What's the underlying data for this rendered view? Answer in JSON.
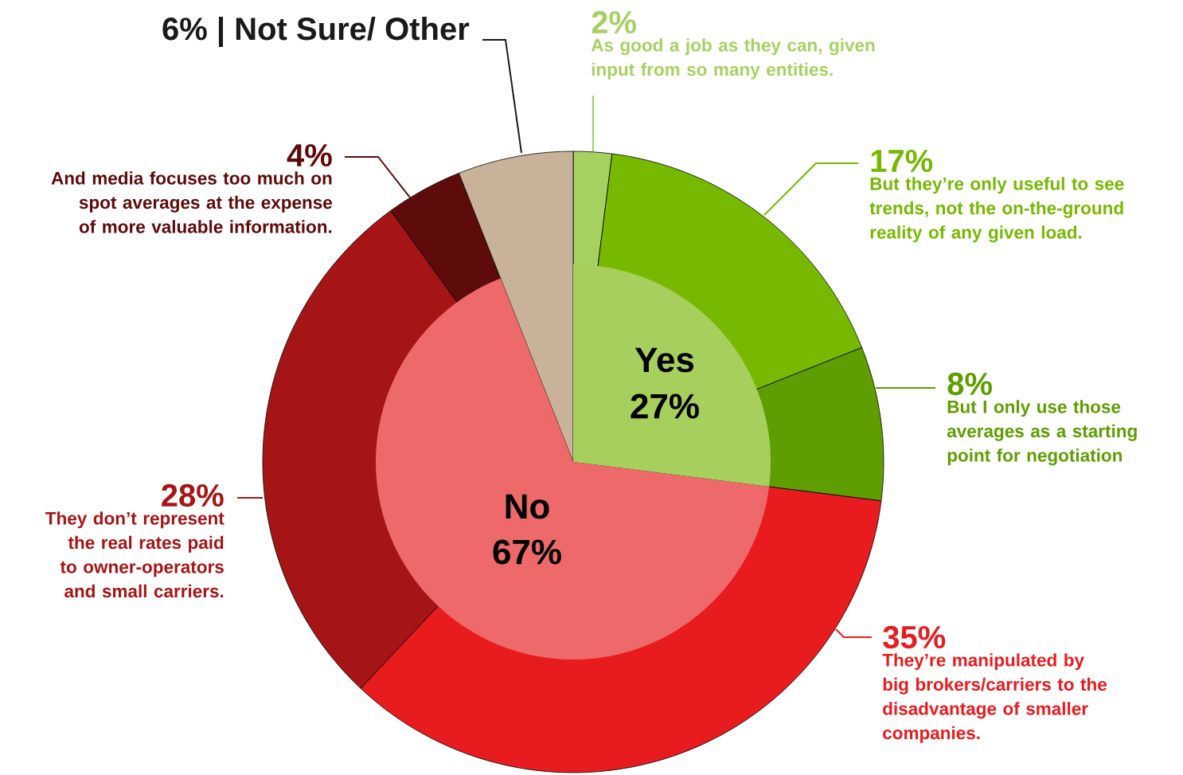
{
  "chart_data": [
    {
      "type": "pie",
      "categories": [
        "As good a job as they can, given input from so many entities.",
        "But they’re only useful to see trends, not the on-the-ground reality of any given load.",
        "But I only use those averages as a starting point for negotiation",
        "They’re manipulated by big brokers/carriers to the disadvantage of smaller companies.",
        "They don’t represent the real rates paid to owner-operators and small carriers.",
        "And media focuses too much on spot averages at the expense of more valuable information.",
        "6% | Not Sure/ Other"
      ],
      "values": [
        2,
        17,
        8,
        35,
        28,
        4,
        6
      ],
      "value_labels": [
        "2%",
        "17%",
        "8%",
        "35%",
        "28%",
        "4%",
        null
      ],
      "colors": [
        "#a6d161",
        "#76b900",
        "#5e9e00",
        "#e81c1f",
        "#a61516",
        "#5e0b0c",
        "#c8b29a"
      ]
    },
    {
      "type": "pie",
      "categories": [
        "Yes",
        "No",
        null
      ],
      "values": [
        27,
        67,
        null
      ],
      "value_labels": [
        "27%",
        "67%",
        null
      ],
      "colors": [
        "#a6cf5d",
        "#ee6a6a",
        null
      ]
    }
  ]
}
